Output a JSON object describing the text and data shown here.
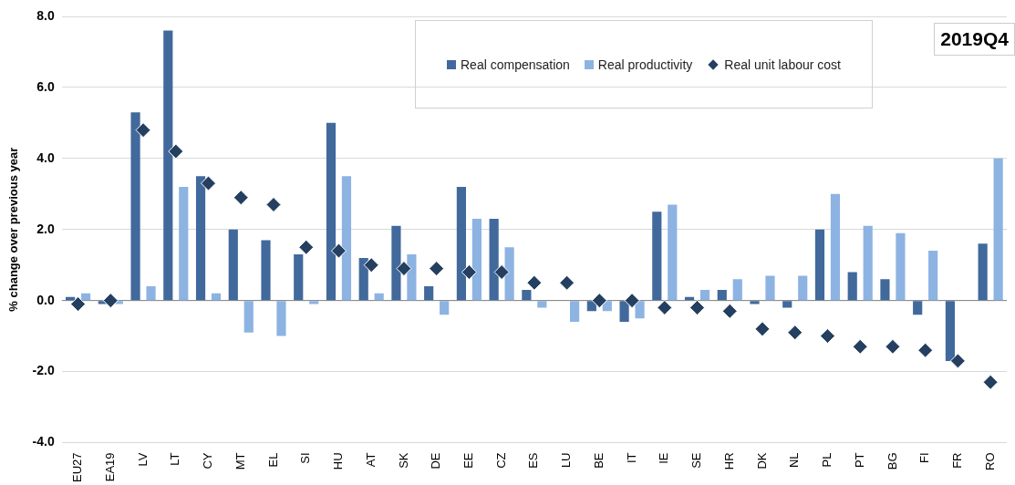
{
  "chart_data": {
    "type": "bar",
    "ylabel": "% change over previous year",
    "annotations": [
      "2019Q4"
    ],
    "categories": [
      "EU27",
      "EA19",
      "LV",
      "LT",
      "CY",
      "MT",
      "EL",
      "SI",
      "HU",
      "AT",
      "SK",
      "DE",
      "EE",
      "CZ",
      "ES",
      "LU",
      "BE",
      "IT",
      "IE",
      "SE",
      "HR",
      "DK",
      "NL",
      "PL",
      "PT",
      "BG",
      "FI",
      "FR",
      "RO"
    ],
    "series": [
      {
        "name": "Real compensation",
        "color": "#41699c",
        "values": [
          0.1,
          -0.1,
          5.3,
          7.6,
          3.5,
          2.0,
          1.7,
          1.3,
          5.0,
          1.2,
          2.1,
          0.4,
          3.2,
          2.3,
          0.3,
          0.0,
          -0.3,
          -0.6,
          2.5,
          0.1,
          0.3,
          -0.1,
          -0.2,
          2.0,
          0.8,
          0.6,
          -0.4,
          -1.7,
          1.6
        ]
      },
      {
        "name": "Real productivity",
        "color": "#8db3e2",
        "values": [
          0.2,
          -0.1,
          0.4,
          3.2,
          0.2,
          -0.9,
          -1.0,
          -0.1,
          3.5,
          0.2,
          1.3,
          -0.4,
          2.3,
          1.5,
          -0.2,
          -0.6,
          -0.3,
          -0.5,
          2.7,
          0.3,
          0.6,
          0.7,
          0.7,
          3.0,
          2.1,
          1.9,
          1.4,
          0.0,
          4.0
        ]
      },
      {
        "name": "Real unit labour cost",
        "type": "scatter",
        "marker": "diamond",
        "color": "#243f60",
        "values": [
          -0.1,
          0.0,
          4.8,
          4.2,
          3.3,
          2.9,
          2.7,
          1.5,
          1.4,
          1.0,
          0.9,
          0.9,
          0.8,
          0.8,
          0.5,
          0.5,
          0.0,
          0.0,
          -0.2,
          -0.2,
          -0.3,
          -0.8,
          -0.9,
          -1.0,
          -1.3,
          -1.3,
          -1.4,
          -1.7,
          -2.3
        ]
      }
    ],
    "ylim": [
      -4,
      8
    ],
    "yticks": [
      {
        "value": -4,
        "label": "-4.0"
      },
      {
        "value": -2,
        "label": "-2.0"
      },
      {
        "value": 0,
        "label": "0.0"
      },
      {
        "value": 2,
        "label": "2.0"
      },
      {
        "value": 4,
        "label": "4.0"
      },
      {
        "value": 6,
        "label": "6.0"
      },
      {
        "value": 8,
        "label": "8.0"
      }
    ],
    "grid": "y",
    "legend": "top"
  }
}
